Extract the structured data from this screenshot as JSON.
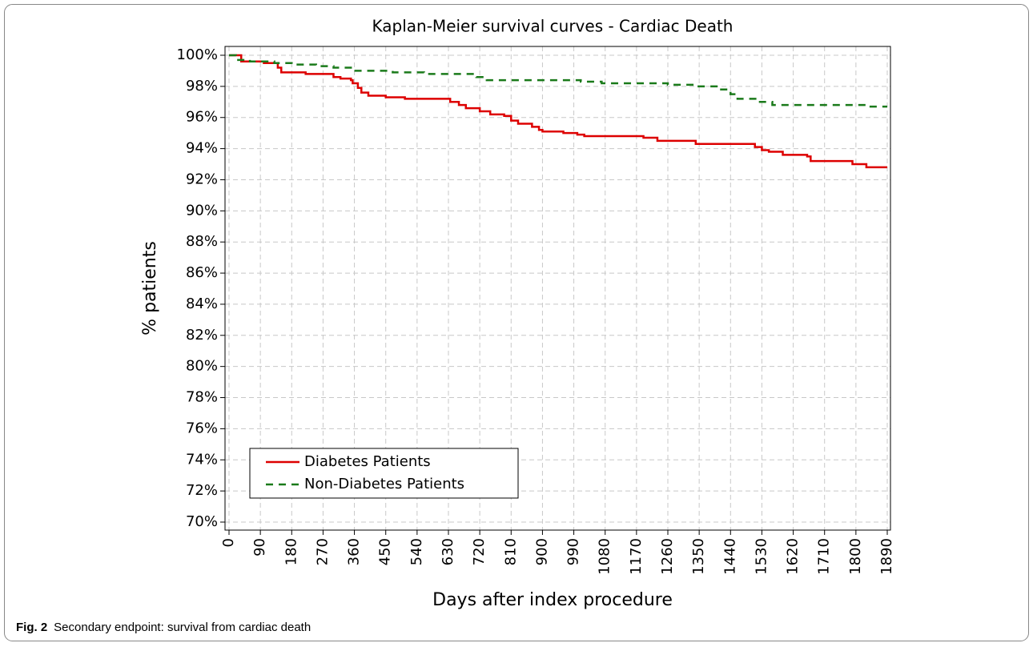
{
  "chart_data": {
    "type": "line",
    "title": "Kaplan-Meier survival curves - Cardiac Death",
    "x_label": "Days after index procedure",
    "y_label": "% patients",
    "step": true,
    "grid": true,
    "legend": "lower left",
    "xlim": [
      0,
      1890
    ],
    "ylim": [
      70,
      100
    ],
    "xticks": [
      0,
      90,
      180,
      270,
      360,
      450,
      540,
      630,
      720,
      810,
      900,
      990,
      1080,
      1170,
      1260,
      1350,
      1440,
      1530,
      1620,
      1710,
      1800,
      1890
    ],
    "yticks": [
      {
        "value": 70,
        "label": "70%"
      },
      {
        "value": 72,
        "label": "72%"
      },
      {
        "value": 74,
        "label": "74%"
      },
      {
        "value": 76,
        "label": "76%"
      },
      {
        "value": 78,
        "label": "78%"
      },
      {
        "value": 80,
        "label": "80%"
      },
      {
        "value": 82,
        "label": "82%"
      },
      {
        "value": 84,
        "label": "84%"
      },
      {
        "value": 86,
        "label": "86%"
      },
      {
        "value": 88,
        "label": "88%"
      },
      {
        "value": 90,
        "label": "90%"
      },
      {
        "value": 92,
        "label": "92%"
      },
      {
        "value": 94,
        "label": "94%"
      },
      {
        "value": 96,
        "label": "96%"
      },
      {
        "value": 98,
        "label": "98%"
      },
      {
        "value": 100,
        "label": "100%"
      }
    ],
    "series": [
      {
        "name": "Diabetes Patients",
        "color": "#dd0000",
        "dash": false,
        "x": [
          0,
          35,
          100,
          140,
          150,
          220,
          300,
          320,
          350,
          355,
          370,
          380,
          400,
          450,
          505,
          635,
          660,
          680,
          720,
          750,
          790,
          810,
          830,
          870,
          890,
          900,
          960,
          1000,
          1020,
          1190,
          1230,
          1340,
          1510,
          1530,
          1550,
          1590,
          1660,
          1670,
          1790,
          1830,
          1890
        ],
        "values": [
          100,
          99.6,
          99.5,
          99.2,
          98.9,
          98.8,
          98.6,
          98.5,
          98.4,
          98.2,
          97.9,
          97.6,
          97.4,
          97.3,
          97.2,
          97.0,
          96.8,
          96.6,
          96.4,
          96.2,
          96.1,
          95.8,
          95.6,
          95.4,
          95.2,
          95.1,
          95.0,
          94.9,
          94.8,
          94.7,
          94.5,
          94.3,
          94.1,
          93.9,
          93.8,
          93.6,
          93.5,
          93.2,
          93.0,
          92.8,
          92.8
        ]
      },
      {
        "name": "Non-Diabetes Patients",
        "color": "#1a7a1a",
        "dash": true,
        "x": [
          0,
          20,
          60,
          130,
          180,
          250,
          300,
          350,
          470,
          560,
          710,
          740,
          1010,
          1070,
          1260,
          1340,
          1410,
          1440,
          1460,
          1520,
          1560,
          1830,
          1890
        ],
        "values": [
          100,
          99.7,
          99.6,
          99.5,
          99.4,
          99.3,
          99.2,
          99.0,
          98.9,
          98.8,
          98.6,
          98.4,
          98.3,
          98.2,
          98.1,
          98.0,
          97.8,
          97.5,
          97.2,
          97.0,
          96.8,
          96.7,
          96.7
        ]
      }
    ]
  },
  "figure": {
    "label": "Fig. 2",
    "caption": "Secondary endpoint: survival from cardiac death"
  }
}
